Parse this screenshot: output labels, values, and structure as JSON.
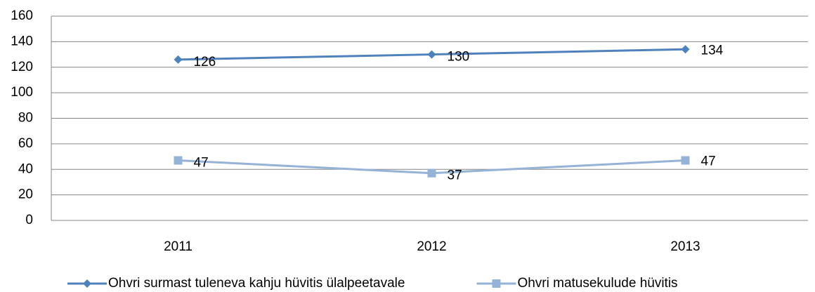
{
  "chart_data": {
    "type": "line",
    "categories": [
      "2011",
      "2012",
      "2013"
    ],
    "series": [
      {
        "name": "Ohvri surmast tuleneva kahju hüvitis ülalpeetavale",
        "color": "#4f81bd",
        "marker": "diamond",
        "values": [
          126,
          130,
          134
        ]
      },
      {
        "name": "Ohvri matusekulude hüvitis",
        "color": "#95b3d7",
        "marker": "square",
        "values": [
          47,
          37,
          47
        ]
      }
    ],
    "ylim": [
      0,
      160
    ],
    "yticks": [
      0,
      20,
      40,
      60,
      80,
      100,
      120,
      140,
      160
    ],
    "grid": true,
    "legend": "bottom"
  }
}
